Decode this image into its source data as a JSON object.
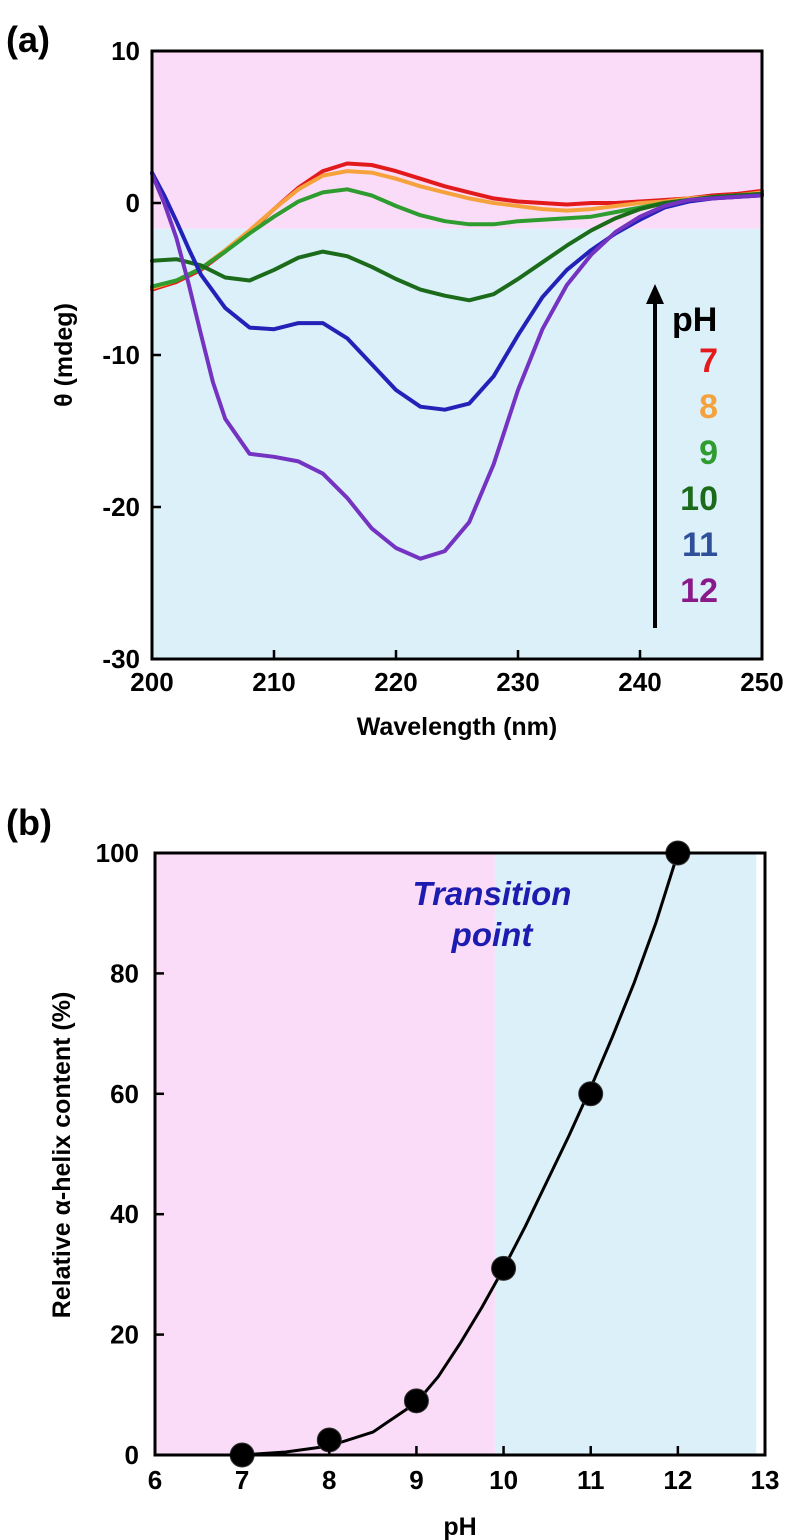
{
  "chart_data": [
    {
      "panel_label": "(a)",
      "type": "line",
      "xlabel": "Wavelength (nm)",
      "ylabel": "θ (mdeg)",
      "xlim": [
        200,
        250
      ],
      "ylim": [
        -30,
        10
      ],
      "x_ticks": [
        "200",
        "210",
        "220",
        "230",
        "240",
        "250"
      ],
      "y_ticks": [
        "10",
        "0",
        "-10",
        "-20",
        "-30"
      ],
      "background_regions": [
        {
          "from_y": 10,
          "to_y": -1.7,
          "color": "#fbdcf8"
        },
        {
          "from_y": -1.7,
          "to_y": -30,
          "color": "#dcf0fa"
        }
      ],
      "legend": {
        "title": "pH",
        "placement": "right",
        "entries": [
          {
            "label": "7",
            "color": "#e31a1c"
          },
          {
            "label": "8",
            "color": "#f6a23c"
          },
          {
            "label": "9",
            "color": "#2e9c2e"
          },
          {
            "label": "10",
            "color": "#1b6b1b"
          },
          {
            "label": "11",
            "color": "#2f4f9a"
          },
          {
            "label": "12",
            "color": "#8a1a8a"
          }
        ]
      },
      "series": [
        {
          "color": "#e31a1c",
          "x": [
            200,
            202,
            204,
            206,
            208,
            210,
            212,
            214,
            216,
            218,
            220,
            222,
            224,
            226,
            228,
            230,
            232,
            234,
            236,
            238,
            240,
            242,
            244,
            246,
            248,
            250
          ],
          "y": [
            -5.7,
            -5.2,
            -4.4,
            -3.2,
            -1.9,
            -0.4,
            1.0,
            2.1,
            2.6,
            2.5,
            2.1,
            1.6,
            1.1,
            0.7,
            0.3,
            0.1,
            0,
            -0.1,
            0,
            0,
            0.1,
            0.2,
            0.3,
            0.5,
            0.6,
            0.8
          ]
        },
        {
          "color": "#f6a23c",
          "x": [
            200,
            202,
            204,
            206,
            208,
            210,
            212,
            214,
            216,
            218,
            220,
            222,
            224,
            226,
            228,
            230,
            232,
            234,
            236,
            238,
            240,
            242,
            244,
            246,
            248,
            250
          ],
          "y": [
            -5.6,
            -5.1,
            -4.3,
            -3.1,
            -1.8,
            -0.4,
            0.9,
            1.8,
            2.1,
            2.0,
            1.6,
            1.1,
            0.7,
            0.3,
            0,
            -0.2,
            -0.4,
            -0.5,
            -0.4,
            -0.2,
            0,
            0.1,
            0.3,
            0.4,
            0.5,
            0.7
          ]
        },
        {
          "color": "#2e9c2e",
          "x": [
            200,
            202,
            204,
            206,
            208,
            210,
            212,
            214,
            216,
            218,
            220,
            222,
            224,
            226,
            228,
            230,
            232,
            234,
            236,
            238,
            240,
            242,
            244,
            246,
            248,
            250
          ],
          "y": [
            -5.5,
            -5.1,
            -4.3,
            -3.2,
            -2.0,
            -0.9,
            0.1,
            0.7,
            0.9,
            0.5,
            -0.2,
            -0.8,
            -1.2,
            -1.4,
            -1.4,
            -1.2,
            -1.1,
            -1.0,
            -0.9,
            -0.6,
            -0.3,
            0,
            0.2,
            0.3,
            0.5,
            0.6
          ]
        },
        {
          "color": "#1b6b1b",
          "x": [
            200,
            202,
            204,
            206,
            208,
            210,
            212,
            214,
            216,
            218,
            220,
            222,
            224,
            226,
            228,
            230,
            232,
            234,
            236,
            238,
            240,
            242,
            244,
            246,
            248,
            250
          ],
          "y": [
            -3.8,
            -3.7,
            -4.1,
            -4.9,
            -5.1,
            -4.4,
            -3.6,
            -3.2,
            -3.5,
            -4.2,
            -5.0,
            -5.7,
            -6.1,
            -6.4,
            -6.0,
            -5.0,
            -3.9,
            -2.8,
            -1.8,
            -1.0,
            -0.4,
            0,
            0.2,
            0.4,
            0.5,
            0.6
          ]
        },
        {
          "color": "#2222b8",
          "x": [
            200,
            201,
            202,
            203,
            204,
            206,
            208,
            210,
            212,
            214,
            216,
            218,
            220,
            222,
            224,
            226,
            228,
            230,
            232,
            234,
            236,
            238,
            240,
            242,
            244,
            246,
            248,
            250
          ],
          "y": [
            2.0,
            0.5,
            -1.2,
            -3.0,
            -4.7,
            -6.9,
            -8.2,
            -8.3,
            -7.9,
            -7.9,
            -8.9,
            -10.6,
            -12.3,
            -13.4,
            -13.6,
            -13.2,
            -11.4,
            -8.7,
            -6.2,
            -4.4,
            -3.1,
            -2.0,
            -1.1,
            -0.3,
            0.1,
            0.3,
            0.4,
            0.5
          ]
        },
        {
          "color": "#7433c0",
          "x": [
            200,
            201,
            202,
            203,
            204,
            205,
            206,
            208,
            210,
            212,
            214,
            216,
            218,
            220,
            222,
            224,
            226,
            228,
            230,
            232,
            234,
            236,
            238,
            240,
            242,
            244,
            246,
            248,
            250
          ],
          "y": [
            1.9,
            0.0,
            -2.3,
            -5.3,
            -8.6,
            -11.8,
            -14.2,
            -16.5,
            -16.7,
            -17.0,
            -17.8,
            -19.4,
            -21.4,
            -22.7,
            -23.4,
            -22.9,
            -21.0,
            -17.2,
            -12.3,
            -8.3,
            -5.4,
            -3.4,
            -1.9,
            -0.9,
            -0.2,
            0.2,
            0.3,
            0.4,
            0.5
          ]
        }
      ]
    },
    {
      "panel_label": "(b)",
      "type": "scatter",
      "xlabel": "pH",
      "ylabel": "Relative α-helix content (%)",
      "xlim": [
        6,
        13
      ],
      "ylim": [
        0,
        100
      ],
      "x_ticks": [
        "6",
        "7",
        "8",
        "9",
        "10",
        "11",
        "12",
        "13"
      ],
      "y_ticks": [
        "0",
        "20",
        "40",
        "60",
        "80",
        "100"
      ],
      "background_regions": [
        {
          "from_x": 6,
          "to_x": 9.9,
          "color": "#fbdcf8"
        },
        {
          "from_x": 9.9,
          "to_x": 12.9,
          "color": "#dcf0fa"
        }
      ],
      "annotation": {
        "line1": "Transition",
        "line2": "point",
        "color": "#1c1cb0"
      },
      "points": {
        "x": [
          7,
          8,
          9,
          10,
          11,
          12
        ],
        "y": [
          0,
          2.5,
          9,
          31,
          60,
          100
        ]
      },
      "fit_curve": {
        "x": [
          7,
          7.5,
          8,
          8.5,
          9,
          9.25,
          9.5,
          9.75,
          10,
          10.25,
          10.5,
          10.75,
          11,
          11.25,
          11.5,
          11.75,
          12
        ],
        "y": [
          0,
          0.5,
          1.5,
          3.8,
          8.7,
          13,
          18.5,
          24.5,
          31,
          38,
          45.5,
          53,
          61,
          69.5,
          78.5,
          88.5,
          100
        ]
      }
    }
  ]
}
